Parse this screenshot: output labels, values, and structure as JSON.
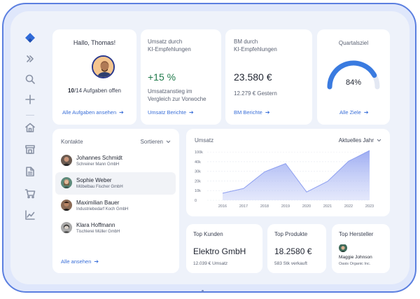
{
  "greeting": {
    "title": "Hallo, Thomas!",
    "tasks_done": "10",
    "tasks_text": "/14 Aufgaben offen",
    "link": "Alle Aufgaben ansehen"
  },
  "sales_ai": {
    "label_line1": "Umsatz durch",
    "label_line2": "KI-Empfehlungen",
    "value": "+15 %",
    "desc_line1": "Umsatzanstieg im",
    "desc_line2": "Vergleich zur Vorwoche",
    "link": "Umsatz Berichte",
    "value_color": "#1f7a4a"
  },
  "bm_ai": {
    "label_line1": "BM durch",
    "label_line2": "KI-Empfehlungen",
    "value": "23.580 €",
    "desc": "12.279 € Gestern",
    "link": "BM Berichte"
  },
  "quarter": {
    "label": "Quartalsziel",
    "percent_text": "84%",
    "percent": 0.84,
    "link": "Alle Ziele",
    "accent": "#3a7be0"
  },
  "contacts": {
    "title": "Kontakte",
    "sort_label": "Sortieren",
    "items": [
      {
        "name": "Johannes Schmidt",
        "company": "Schreiner Mann GmbH",
        "active": false
      },
      {
        "name": "Sophie Weber",
        "company": "Möbelbau Fischer GmbH",
        "active": true
      },
      {
        "name": "Maximilian Bauer",
        "company": "Industriebedarf Koch GmbH",
        "active": false
      },
      {
        "name": "Klara Hoffmann",
        "company": "Tischlerei Müller GmbH",
        "active": false
      }
    ],
    "link": "Alle ansehen"
  },
  "revenue": {
    "title": "Umsatz",
    "period": "Aktuelles Jahr"
  },
  "chart_data": {
    "type": "area",
    "title": "Umsatz",
    "x": [
      "2016",
      "2017",
      "2018",
      "2019",
      "2020",
      "2021",
      "2022",
      "2023"
    ],
    "series": [
      {
        "values": [
          6,
          10,
          24,
          31,
          7,
          16,
          33,
          42
        ]
      }
    ],
    "xlabel": "",
    "ylabel": "",
    "ylim": [
      0,
      42
    ],
    "yticks": [
      "0",
      "10k",
      "20k",
      "30k",
      "40k",
      "100k"
    ],
    "grid": true,
    "color": "#8d9ff0"
  },
  "top_customers": {
    "label": "Top Kunden",
    "value": "Elektro GmbH",
    "sub": "12.039 € Umsatz"
  },
  "top_products": {
    "label": "Top Produkte",
    "value": "18.2580 €",
    "sub": "583 Stk verkauft"
  },
  "top_manufacturer": {
    "label": "Top Hersteller",
    "name": "Maggie Johnson",
    "company": "Oasis Organic Inc."
  },
  "sidebar": {
    "icons": [
      "logo-icon",
      "expand-icon",
      "search-icon",
      "add-icon",
      "home-icon",
      "store-icon",
      "document-icon",
      "cart-icon",
      "chart-icon"
    ]
  }
}
